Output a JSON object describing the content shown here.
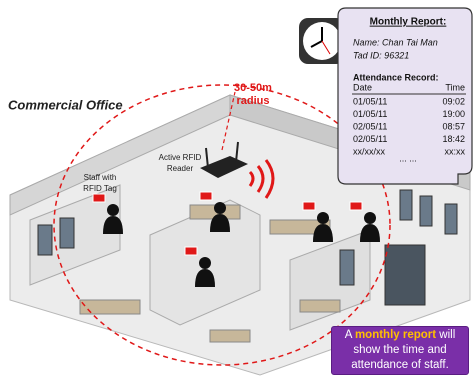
{
  "area_label": "Commercial Office",
  "range_label": [
    "30-50m",
    "radius"
  ],
  "reader_label": [
    "Active RFID",
    "Reader"
  ],
  "staff_label": [
    "Staff with",
    "RFID Tag"
  ],
  "report": {
    "title": "Monthly Report:",
    "name": "Name: Chan Tai Man",
    "tag_id": "Tad ID: 96321",
    "record_title": "Attendance Record:",
    "columns": [
      "Date",
      "Time"
    ],
    "rows": [
      [
        "01/05/11",
        "09:02"
      ],
      [
        "01/05/11",
        "19:00"
      ],
      [
        "02/05/11",
        "08:57"
      ],
      [
        "02/05/11",
        "18:42"
      ],
      [
        "xx/xx/xx",
        "xx:xx"
      ]
    ],
    "more": "... ..."
  },
  "caption": {
    "before": "A",
    "highlight": "monthly report",
    "after": "will show the time and attendance of staff."
  }
}
